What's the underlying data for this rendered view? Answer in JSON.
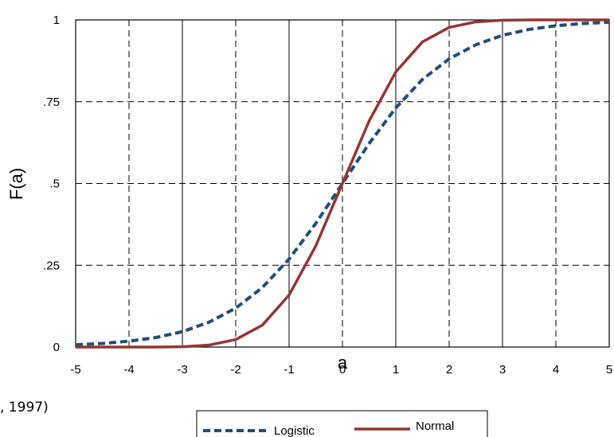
{
  "chart_data": {
    "type": "line",
    "title": "",
    "xlabel": "a",
    "ylabel": "F(a)",
    "xlim": [
      -5,
      5
    ],
    "ylim": [
      0,
      1
    ],
    "x_ticks": [
      -5,
      -4,
      -3,
      -2,
      -1,
      0,
      1,
      2,
      3,
      4,
      5
    ],
    "x_tick_labels": [
      "-5",
      "-4",
      "-3",
      "-2",
      "-1",
      "0",
      "1",
      "2",
      "3",
      "4",
      "5"
    ],
    "y_ticks": [
      0,
      0.25,
      0.5,
      0.75,
      1
    ],
    "y_tick_labels": [
      "0",
      ".25",
      ".5",
      ".75",
      "1"
    ],
    "grid": true,
    "legend_position": "bottom-center",
    "series": [
      {
        "name": "Logistic",
        "style": "dashed",
        "color": "#1f4e79",
        "x": [
          -5,
          -4.5,
          -4,
          -3.5,
          -3,
          -2.5,
          -2,
          -1.5,
          -1,
          -0.5,
          0,
          0.5,
          1,
          1.5,
          2,
          2.5,
          3,
          3.5,
          4,
          4.5,
          5
        ],
        "y": [
          0.007,
          0.011,
          0.018,
          0.029,
          0.047,
          0.076,
          0.119,
          0.182,
          0.269,
          0.378,
          0.5,
          0.622,
          0.731,
          0.818,
          0.881,
          0.924,
          0.953,
          0.971,
          0.982,
          0.989,
          0.993
        ]
      },
      {
        "name": "Normal",
        "style": "solid",
        "color": "#943634",
        "x": [
          -5,
          -4.5,
          -4,
          -3.5,
          -3,
          -2.5,
          -2,
          -1.5,
          -1,
          -0.5,
          0,
          0.5,
          1,
          1.5,
          2,
          2.5,
          3,
          3.5,
          4,
          4.5,
          5
        ],
        "y": [
          0.0,
          0.0,
          0.0,
          0.0,
          0.001,
          0.006,
          0.023,
          0.067,
          0.159,
          0.309,
          0.5,
          0.691,
          0.841,
          0.933,
          0.977,
          0.994,
          0.999,
          1.0,
          1.0,
          1.0,
          1.0
        ]
      }
    ]
  },
  "caption_fragment": ", 1997)"
}
